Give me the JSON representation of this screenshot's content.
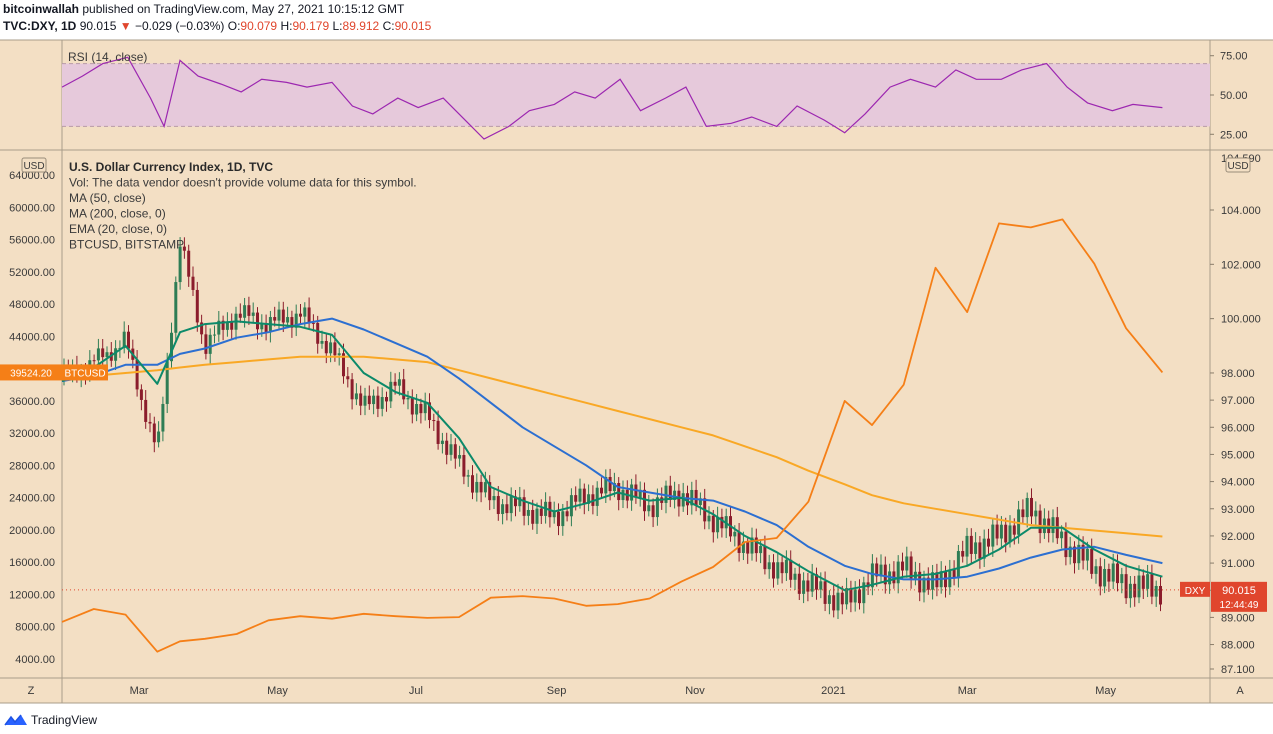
{
  "header": {
    "author": "bitcoinwallah",
    "published_text": "published on TradingView.com, May 27, 2021 10:15:12 GMT",
    "symbol": "TVC:DXY, 1D",
    "last": "90.015",
    "change_arrow": "▼",
    "change": "−0.029 (−0.03%)",
    "o_label": "O:",
    "o_value": "90.079",
    "h_label": "H:",
    "h_value": "90.179",
    "l_label": "L:",
    "l_value": "89.912",
    "c_label": "C:",
    "c_value": "90.015"
  },
  "rsi_panel": {
    "label": "RSI (14, close)",
    "ticks": [
      "75.00",
      "50.00",
      "25.00"
    ]
  },
  "main_panel": {
    "currency_left": "USD",
    "currency_right": "USD",
    "legend": [
      "U.S. Dollar Currency Index, 1D, TVC",
      "Vol: The data vendor doesn't provide volume data for this symbol.",
      "MA (50, close)",
      "MA (200, close, 0)",
      "EMA (20, close, 0)",
      "BTCUSD, BITSTAMP"
    ],
    "btc_label_value": "39524.20",
    "btc_label_symbol": "BTCUSD",
    "dxy_label_symbol": "DXY",
    "dxy_label_value": "90.015",
    "dxy_countdown": "12:44:49",
    "top_right_tick": "104.590"
  },
  "time_axis": {
    "labels": [
      "Mar",
      "May",
      "Jul",
      "Sep",
      "Nov",
      "2021",
      "Mar",
      "May"
    ],
    "left_button": "Z",
    "right_button": "A"
  },
  "footer": {
    "brand": "TradingView"
  },
  "colors": {
    "background": "#f3dfc4",
    "rsi_line": "#9c27b0",
    "rsi_band": "#e6c9db",
    "btc": "#f57f17",
    "ma50": "#2c6fd1",
    "ma200": "#f9a825",
    "ema20": "#0c8a6a",
    "candle_up": "#2e7d55",
    "candle_down": "#8b1d2c",
    "last_price": "#e0462d"
  },
  "chart_data": [
    {
      "type": "line",
      "title": "RSI (14, close)",
      "ylim": [
        15,
        85
      ],
      "y_ticks": [
        75,
        50,
        25
      ],
      "x": [
        "2020-01-27",
        "2020-02-05",
        "2020-02-14",
        "2020-02-25",
        "2020-03-06",
        "2020-03-12",
        "2020-03-19",
        "2020-03-27",
        "2020-04-06",
        "2020-04-15",
        "2020-04-24",
        "2020-05-05",
        "2020-05-14",
        "2020-05-25",
        "2020-06-03",
        "2020-06-12",
        "2020-06-23",
        "2020-07-02",
        "2020-07-13",
        "2020-07-22",
        "2020-07-31",
        "2020-08-11",
        "2020-08-20",
        "2020-08-31",
        "2020-09-09",
        "2020-09-18",
        "2020-09-29",
        "2020-10-08",
        "2020-10-19",
        "2020-10-28",
        "2020-11-06",
        "2020-11-17",
        "2020-11-26",
        "2020-12-07",
        "2020-12-16",
        "2020-12-28",
        "2021-01-06",
        "2021-01-15",
        "2021-01-26",
        "2021-02-04",
        "2021-02-15",
        "2021-02-24",
        "2021-03-05",
        "2021-03-16",
        "2021-03-25",
        "2021-04-05",
        "2021-04-14",
        "2021-04-23",
        "2021-05-04",
        "2021-05-13",
        "2021-05-26"
      ],
      "series": [
        {
          "values": [
            55,
            62,
            70,
            74,
            48,
            30,
            72,
            62,
            57,
            52,
            60,
            58,
            55,
            58,
            43,
            38,
            48,
            42,
            48,
            35,
            22,
            30,
            40,
            44,
            52,
            48,
            60,
            40,
            48,
            55,
            30,
            32,
            36,
            30,
            43,
            34,
            26,
            38,
            55,
            60,
            55,
            66,
            60,
            60,
            66,
            70,
            55,
            45,
            40,
            44,
            42
          ]
        }
      ]
    },
    {
      "type": "line",
      "title": "U.S. Dollar Currency Index, 1D, TVC",
      "y_left_ticks": [
        64000,
        60000,
        56000,
        52000,
        48000,
        44000,
        40000,
        36000,
        32000,
        28000,
        24000,
        20000,
        16000,
        12000,
        8000,
        4000
      ],
      "y_right_ticks": [
        104,
        102,
        100,
        98,
        97,
        96,
        95,
        94,
        93,
        92,
        91,
        90,
        89,
        88,
        87.1
      ],
      "x_labels": [
        "Mar",
        "May",
        "Jul",
        "Sep",
        "Nov",
        "2021",
        "Mar",
        "May"
      ],
      "x": [
        "2020-01-27",
        "2020-02-10",
        "2020-02-24",
        "2020-03-09",
        "2020-03-19",
        "2020-03-30",
        "2020-04-13",
        "2020-04-27",
        "2020-05-11",
        "2020-05-25",
        "2020-06-08",
        "2020-06-22",
        "2020-07-06",
        "2020-07-20",
        "2020-08-03",
        "2020-08-17",
        "2020-08-31",
        "2020-09-14",
        "2020-09-28",
        "2020-10-12",
        "2020-10-26",
        "2020-11-09",
        "2020-11-23",
        "2020-12-07",
        "2020-12-21",
        "2021-01-06",
        "2021-01-18",
        "2021-02-01",
        "2021-02-15",
        "2021-03-01",
        "2021-03-15",
        "2021-03-29",
        "2021-04-12",
        "2021-04-26",
        "2021-05-10",
        "2021-05-26"
      ],
      "series": [
        {
          "name": "U.S. Dollar Currency Index, 1D, TVC",
          "values": [
            97.8,
            98.4,
            99.2,
            95.0,
            102.8,
            99.0,
            100.2,
            99.8,
            100.2,
            98.8,
            96.7,
            97.5,
            96.4,
            94.6,
            93.3,
            93.0,
            92.7,
            93.5,
            93.8,
            93.1,
            93.6,
            92.6,
            91.7,
            90.8,
            90.2,
            89.5,
            90.5,
            90.8,
            90.1,
            91.5,
            92.0,
            93.0,
            91.8,
            90.8,
            90.2,
            90.015
          ]
        },
        {
          "name": "BTCUSD, BITSTAMP",
          "values": [
            8600,
            10200,
            9500,
            4900,
            6200,
            6500,
            7100,
            8800,
            9300,
            9000,
            9600,
            9300,
            9100,
            9200,
            11600,
            11800,
            11500,
            10600,
            10800,
            11500,
            13600,
            15400,
            18500,
            19000,
            23500,
            36000,
            33000,
            38000,
            52500,
            47000,
            58000,
            57500,
            58500,
            53000,
            45000,
            39524.2
          ]
        },
        {
          "name": "MA (50, close)",
          "values": [
            97.7,
            97.9,
            98.3,
            98.3,
            98.7,
            98.9,
            99.3,
            99.5,
            99.8,
            100.0,
            99.6,
            99.1,
            98.6,
            97.8,
            96.9,
            96.0,
            95.3,
            94.6,
            93.8,
            93.6,
            93.4,
            93.3,
            92.9,
            92.4,
            91.6,
            90.9,
            90.6,
            90.4,
            90.4,
            90.5,
            90.8,
            91.2,
            91.5,
            91.6,
            91.3,
            91.0
          ]
        },
        {
          "name": "MA (200, close, 0)",
          "values": [
            97.8,
            97.9,
            98.0,
            98.1,
            98.2,
            98.3,
            98.4,
            98.5,
            98.6,
            98.6,
            98.6,
            98.5,
            98.4,
            98.1,
            97.8,
            97.5,
            97.2,
            96.9,
            96.6,
            96.3,
            96.0,
            95.7,
            95.3,
            94.9,
            94.4,
            93.9,
            93.5,
            93.2,
            93.0,
            92.8,
            92.6,
            92.4,
            92.3,
            92.2,
            92.1,
            91.98
          ]
        },
        {
          "name": "EMA (20, close, 0)",
          "values": [
            97.7,
            98.2,
            99.0,
            97.6,
            99.5,
            99.8,
            99.9,
            99.8,
            99.7,
            99.4,
            98.0,
            97.3,
            96.9,
            95.6,
            93.8,
            93.3,
            92.9,
            93.2,
            93.6,
            93.3,
            93.4,
            92.8,
            92.0,
            91.4,
            90.7,
            90.0,
            90.2,
            90.5,
            90.6,
            90.9,
            91.5,
            92.3,
            92.3,
            91.5,
            90.9,
            90.5
          ]
        }
      ]
    }
  ]
}
